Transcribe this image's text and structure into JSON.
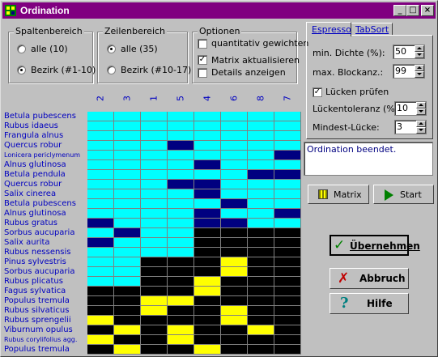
{
  "window": {
    "title": "Ordination",
    "min": "_",
    "max": "□",
    "close": "×"
  },
  "spaltenbereich": {
    "label": "Spaltenbereich",
    "opt1": "alle (10)",
    "opt2": "Bezirk (#1-10)",
    "selected": 2
  },
  "zeilenbereich": {
    "label": "Zeilenbereich",
    "opt1": "alle (35)",
    "opt2": "Bezirk (#10-17)",
    "selected": 1
  },
  "optionen": {
    "label": "Optionen",
    "opt1": "quantitativ gewichten",
    "opt2": "Matrix aktualisieren",
    "opt3": "Details anzeigen",
    "checked": [
      false,
      true,
      false
    ]
  },
  "tabs": {
    "espresso": "Espresso",
    "tabsort": "TabSort"
  },
  "params": {
    "min_dichte_label": "min. Dichte (%):",
    "min_dichte": "50",
    "max_block_label": "max. Blockanz.:",
    "max_block": "99",
    "luecken_label": "Lücken prüfen",
    "luecken_checked": true,
    "toleranz_label": "Lückentoleranz (%):",
    "toleranz": "10",
    "mindest_label": "Mindest-Lücke:",
    "mindest": "3"
  },
  "message": "Ordination beendet.",
  "buttons": {
    "matrix": "Matrix",
    "start": "Start",
    "uebernehmen": "Übernehmen",
    "abbruch": "Abbruch",
    "hilfe": "Hilfe"
  },
  "columns": [
    "2",
    "3",
    "1",
    "5",
    "4",
    "6",
    "8",
    "7"
  ],
  "rows": [
    "Betula pubescens",
    "Rubus idaeus",
    "Frangula alnus",
    "Quercus robur",
    "Lonicera periclymenum",
    "Alnus glutinosa",
    "Betula pendula",
    "Quercus robur",
    "Salix cinerea",
    "Betula pubescens",
    "Alnus glutinosa",
    "Rubus gratus",
    "Sorbus aucuparia",
    "Salix aurita",
    "Rubus nessensis",
    "Pinus sylvestris",
    "Sorbus aucuparia",
    "Rubus plicatus",
    "Fagus sylvatica",
    "Populus tremula",
    "Rubus silvaticus",
    "Rubus sprengelii",
    "Viburnum opulus",
    "Rubus corylifolius agg.",
    "Populus tremula"
  ],
  "colors": {
    "c": "#00ffff",
    "n": "#000080",
    "y": "#ffff00",
    "k": "#000000"
  },
  "matrix": [
    "cccccccc",
    "cccccccc",
    "cccccccc",
    "cccncccc",
    "cccccccn",
    "ccccnccc",
    "ccccccnn",
    "cccnnccc",
    "ccccnccc",
    "cccccncc",
    "ccccnccn",
    "ncccnncc",
    "cncckkkk",
    "nccckkkk",
    "cccckkkk",
    "cckkkykk",
    "cckkkykk",
    "cckkykkk",
    "kkkkykkk",
    "kkyykkkk",
    "kkykkykk",
    "ykkkkykk",
    "kykykkyk",
    "ykkykkkk",
    "kykkykkk"
  ]
}
